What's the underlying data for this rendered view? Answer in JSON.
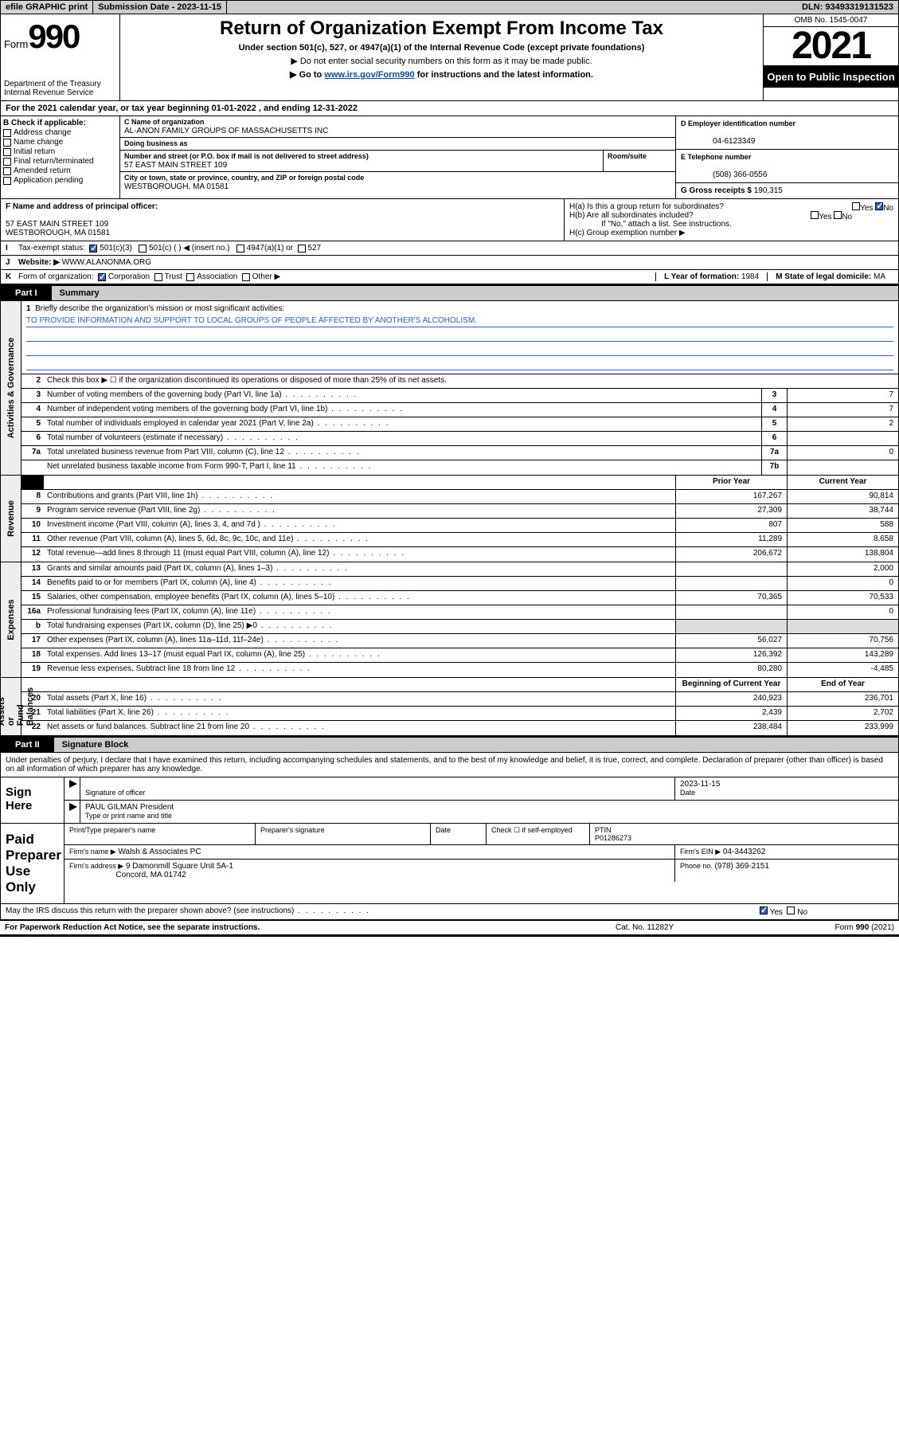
{
  "topbar": {
    "efile": "efile GRAPHIC print",
    "sub_label": "Submission Date - ",
    "sub_date": "2023-11-15",
    "dln_label": "DLN: ",
    "dln": "93493319131523"
  },
  "header": {
    "form_prefix": "Form",
    "form_num": "990",
    "dept": "Department of the Treasury\nInternal Revenue Service",
    "title": "Return of Organization Exempt From Income Tax",
    "sub": "Under section 501(c), 527, or 4947(a)(1) of the Internal Revenue Code (except private foundations)",
    "note1": "▶ Do not enter social security numbers on this form as it may be made public.",
    "note2_a": "▶ Go to ",
    "note2_link": "www.irs.gov/Form990",
    "note2_b": " for instructions and the latest information.",
    "omb": "OMB No. 1545-0047",
    "year": "2021",
    "open": "Open to Public Inspection"
  },
  "A": {
    "text": "For the 2021 calendar year, or tax year beginning 01-01-2022    , and ending 12-31-2022"
  },
  "B": {
    "hd": "B Check if applicable:",
    "opts": [
      "Address change",
      "Name change",
      "Initial return",
      "Final return/terminated",
      "Amended return",
      "Application pending"
    ]
  },
  "C": {
    "name_lbl": "C Name of organization",
    "name": "AL-ANON FAMILY GROUPS OF MASSACHUSETTS INC",
    "dba_lbl": "Doing business as",
    "street_lbl": "Number and street (or P.O. box if mail is not delivered to street address)",
    "suite_lbl": "Room/suite",
    "street": "57 EAST MAIN STREET 109",
    "city_lbl": "City or town, state or province, country, and ZIP or foreign postal code",
    "city": "WESTBOROUGH, MA  01581"
  },
  "D": {
    "lbl": "D Employer identification number",
    "val": "04-6123349"
  },
  "E": {
    "lbl": "E Telephone number",
    "val": "(508) 366-0556"
  },
  "G": {
    "lbl": "G Gross receipts $ ",
    "val": "190,315"
  },
  "F": {
    "lbl": "F  Name and address of principal officer:",
    "l1": "57 EAST MAIN STREET 109",
    "l2": "WESTBOROUGH, MA  01581"
  },
  "H": {
    "a": "H(a)  Is this a group return for subordinates?",
    "b": "H(b)  Are all subordinates included?",
    "b_note": "If \"No,\" attach a list. See instructions.",
    "c": "H(c)  Group exemption number ▶"
  },
  "I": {
    "lead": "I",
    "lbl": "Tax-exempt status:",
    "o1": "501(c)(3)",
    "o2": "501(c) (  ) ◀ (insert no.)",
    "o3": "4947(a)(1) or",
    "o4": "527"
  },
  "J": {
    "lead": "J",
    "lbl": "Website: ▶",
    "val": "WWW.ALANONMA.ORG"
  },
  "K": {
    "lead": "K",
    "lbl": "Form of organization:",
    "o1": "Corporation",
    "o2": "Trust",
    "o3": "Association",
    "o4": "Other ▶"
  },
  "L": {
    "lbl": "L Year of formation: ",
    "val": "1984"
  },
  "M": {
    "lbl": "M State of legal domicile: ",
    "val": "MA"
  },
  "part1": {
    "num": "Part I",
    "title": "Summary"
  },
  "s1": {
    "l1_lbl": "Briefly describe the organization's mission or most significant activities:",
    "l1_val": "TO PROVIDE INFORMATION AND SUPPORT TO LOCAL GROUPS OF PEOPLE AFFECTED BY ANOTHER'S ALCOHOLISM.",
    "l2": "Check this box ▶ ☐  if the organization discontinued its operations or disposed of more than 25% of its net assets.",
    "rows_ag": [
      {
        "n": "3",
        "t": "Number of voting members of the governing body (Part VI, line 1a)",
        "r": "3",
        "v": "7"
      },
      {
        "n": "4",
        "t": "Number of independent voting members of the governing body (Part VI, line 1b)",
        "r": "4",
        "v": "7"
      },
      {
        "n": "5",
        "t": "Total number of individuals employed in calendar year 2021 (Part V, line 2a)",
        "r": "5",
        "v": "2"
      },
      {
        "n": "6",
        "t": "Total number of volunteers (estimate if necessary)",
        "r": "6",
        "v": ""
      },
      {
        "n": "7a",
        "t": "Total unrelated business revenue from Part VIII, column (C), line 12",
        "r": "7a",
        "v": "0"
      },
      {
        "n": "",
        "t": "Net unrelated business taxable income from Form 990-T, Part I, line 11",
        "r": "7b",
        "v": ""
      }
    ],
    "col_prior": "Prior Year",
    "col_curr": "Current Year",
    "rows_rev": [
      {
        "n": "8",
        "t": "Contributions and grants (Part VIII, line 1h)",
        "p": "167,267",
        "c": "90,814"
      },
      {
        "n": "9",
        "t": "Program service revenue (Part VIII, line 2g)",
        "p": "27,309",
        "c": "38,744"
      },
      {
        "n": "10",
        "t": "Investment income (Part VIII, column (A), lines 3, 4, and 7d )",
        "p": "807",
        "c": "588"
      },
      {
        "n": "11",
        "t": "Other revenue (Part VIII, column (A), lines 5, 6d, 8c, 9c, 10c, and 11e)",
        "p": "11,289",
        "c": "8,658"
      },
      {
        "n": "12",
        "t": "Total revenue—add lines 8 through 11 (must equal Part VIII, column (A), line 12)",
        "p": "206,672",
        "c": "138,804"
      }
    ],
    "rows_exp": [
      {
        "n": "13",
        "t": "Grants and similar amounts paid (Part IX, column (A), lines 1–3)",
        "p": "",
        "c": "2,000"
      },
      {
        "n": "14",
        "t": "Benefits paid to or for members (Part IX, column (A), line 4)",
        "p": "",
        "c": "0"
      },
      {
        "n": "15",
        "t": "Salaries, other compensation, employee benefits (Part IX, column (A), lines 5–10)",
        "p": "70,365",
        "c": "70,533"
      },
      {
        "n": "16a",
        "t": "Professional fundraising fees (Part IX, column (A), line 11e)",
        "p": "",
        "c": "0"
      },
      {
        "n": "b",
        "t": "Total fundraising expenses (Part IX, column (D), line 25) ▶0",
        "p": "shade",
        "c": "shade"
      },
      {
        "n": "17",
        "t": "Other expenses (Part IX, column (A), lines 11a–11d, 11f–24e)",
        "p": "56,027",
        "c": "70,756"
      },
      {
        "n": "18",
        "t": "Total expenses. Add lines 13–17 (must equal Part IX, column (A), line 25)",
        "p": "126,392",
        "c": "143,289"
      },
      {
        "n": "19",
        "t": "Revenue less expenses. Subtract line 18 from line 12",
        "p": "80,280",
        "c": "-4,485"
      }
    ],
    "col_beg": "Beginning of Current Year",
    "col_end": "End of Year",
    "rows_na": [
      {
        "n": "20",
        "t": "Total assets (Part X, line 16)",
        "p": "240,923",
        "c": "236,701"
      },
      {
        "n": "21",
        "t": "Total liabilities (Part X, line 26)",
        "p": "2,439",
        "c": "2,702"
      },
      {
        "n": "22",
        "t": "Net assets or fund balances. Subtract line 21 from line 20",
        "p": "238,484",
        "c": "233,999"
      }
    ],
    "tabs": {
      "ag": "Activities & Governance",
      "rev": "Revenue",
      "exp": "Expenses",
      "na": "Net Assets or\nFund Balances"
    }
  },
  "part2": {
    "num": "Part II",
    "title": "Signature Block"
  },
  "sig": {
    "intro": "Under penalties of perjury, I declare that I have examined this return, including accompanying schedules and statements, and to the best of my knowledge and belief, it is true, correct, and complete. Declaration of preparer (other than officer) is based on all information of which preparer has any knowledge.",
    "sign_here": "Sign Here",
    "sig_lbl": "Signature of officer",
    "date_lbl": "Date",
    "date_val": "2023-11-15",
    "name_lbl": "Type or print name and title",
    "name_val": "PAUL GILMAN  President",
    "paid": "Paid Preparer Use Only",
    "pp_name_lbl": "Print/Type preparer's name",
    "pp_sig_lbl": "Preparer's signature",
    "pp_date_lbl": "Date",
    "pp_check": "Check ☐ if self-employed",
    "ptin_lbl": "PTIN",
    "ptin": "P01286273",
    "firm_name_lbl": "Firm's name   ▶",
    "firm_name": "Walsh & Associates PC",
    "firm_ein_lbl": "Firm's EIN ▶",
    "firm_ein": "04-3443262",
    "firm_addr_lbl": "Firm's address ▶",
    "firm_addr": "9 Damonmill Square Unit 5A-1",
    "firm_city": "Concord, MA  01742",
    "phone_lbl": "Phone no. ",
    "phone": "(978) 369-2151",
    "discuss": "May the IRS discuss this return with the preparer shown above? (see instructions)"
  },
  "footer": {
    "l": "For Paperwork Reduction Act Notice, see the separate instructions.",
    "m": "Cat. No. 11282Y",
    "r": "Form 990 (2021)"
  }
}
